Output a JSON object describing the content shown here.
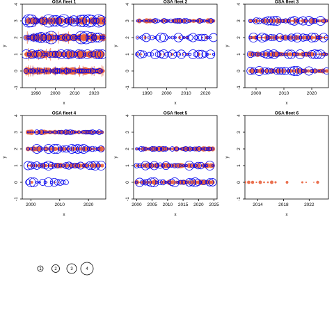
{
  "colors": {
    "observed": "#0000ee",
    "predicted": "#e8603c",
    "axis": "#000000"
  },
  "legend": {
    "labels": [
      "1",
      "2",
      "3",
      "4"
    ]
  },
  "chart_data": [
    {
      "type": "scatter",
      "title": "OSA fleet 1",
      "xlabel": "x",
      "ylabel": "y",
      "xlim": [
        1983,
        2026
      ],
      "ylim": [
        -1,
        4
      ],
      "xticks": [
        1990,
        2000,
        2010,
        2020
      ],
      "yticks": [
        -1,
        0,
        1,
        2,
        3,
        4
      ],
      "rows": [
        {
          "y": 0,
          "years": [
            1985,
            2025
          ],
          "observed": "small",
          "predicted": "dense"
        },
        {
          "y": 1,
          "years": [
            1985,
            2025
          ],
          "observed": "medium",
          "predicted": "dense"
        },
        {
          "y": 2,
          "years": [
            1985,
            2025
          ],
          "observed": "large",
          "predicted": "dense"
        },
        {
          "y": 3,
          "years": [
            1985,
            2025
          ],
          "observed": "large",
          "predicted": "dense"
        }
      ]
    },
    {
      "type": "scatter",
      "title": "OSA fleet 2",
      "xlabel": "x",
      "ylabel": "y",
      "xlim": [
        1983,
        2026
      ],
      "ylim": [
        -1,
        4
      ],
      "xticks": [
        1990,
        2000,
        2010,
        2020
      ],
      "yticks": [
        -1,
        0,
        1,
        2,
        3,
        4
      ],
      "rows": [
        {
          "y": 1,
          "years": [
            1985,
            2025
          ],
          "observed": "medium",
          "predicted": "sparse"
        },
        {
          "y": 2,
          "years": [
            1985,
            2025
          ],
          "observed": "medium",
          "predicted": "sparse"
        },
        {
          "y": 3,
          "years": [
            1985,
            2025
          ],
          "observed": "small",
          "predicted": "medium"
        }
      ]
    },
    {
      "type": "scatter",
      "title": "OSA fleet 3",
      "xlabel": "x",
      "ylabel": "y",
      "xlim": [
        1996,
        2026
      ],
      "ylim": [
        -1,
        4
      ],
      "xticks": [
        2000,
        2010,
        2020
      ],
      "yticks": [
        -1,
        0,
        1,
        2,
        3,
        4
      ],
      "rows": [
        {
          "y": 0,
          "years": [
            1998,
            2026
          ],
          "observed": "medium",
          "predicted": "medium"
        },
        {
          "y": 1,
          "years": [
            1998,
            2026
          ],
          "observed": "medium",
          "predicted": "medium"
        },
        {
          "y": 2,
          "years": [
            1998,
            2026
          ],
          "observed": "medium",
          "predicted": "medium"
        },
        {
          "y": 3,
          "years": [
            1998,
            2026
          ],
          "observed": "medium",
          "predicted": "medium"
        }
      ]
    },
    {
      "type": "scatter",
      "title": "OSA fleet 4",
      "xlabel": "x",
      "ylabel": "y",
      "xlim": [
        1997,
        2026
      ],
      "ylim": [
        -1,
        4
      ],
      "xticks": [
        2000,
        2010,
        2020
      ],
      "yticks": [
        -1,
        0,
        1,
        2,
        3,
        4
      ],
      "rows": [
        {
          "y": 0,
          "years": [
            1999,
            2013
          ],
          "observed": "medium",
          "predicted": "sparse"
        },
        {
          "y": 1,
          "years": [
            1999,
            2025
          ],
          "observed": "medium",
          "predicted": "medium"
        },
        {
          "y": 2,
          "years": [
            1999,
            2025
          ],
          "observed": "medium",
          "predicted": "medium"
        },
        {
          "y": 3,
          "years": [
            1999,
            2025
          ],
          "observed": "small",
          "predicted": "medium"
        }
      ]
    },
    {
      "type": "scatter",
      "title": "OSA fleet 5",
      "xlabel": "x",
      "ylabel": "y",
      "xlim": [
        1999,
        2026
      ],
      "ylim": [
        -1,
        4
      ],
      "xticks": [
        2000,
        2005,
        2010,
        2015,
        2020,
        2025
      ],
      "yticks": [
        -1,
        0,
        1,
        2,
        3,
        4
      ],
      "rows": [
        {
          "y": 0,
          "years": [
            2000,
            2025
          ],
          "observed": "medium",
          "predicted": "medium"
        },
        {
          "y": 1,
          "years": [
            2000,
            2025
          ],
          "observed": "medium",
          "predicted": "medium"
        },
        {
          "y": 2,
          "years": [
            2000,
            2025
          ],
          "observed": "small",
          "predicted": "medium"
        }
      ]
    },
    {
      "type": "scatter",
      "title": "OSA fleet 6",
      "xlabel": "x",
      "ylabel": "y",
      "xlim": [
        2012,
        2025
      ],
      "ylim": [
        -1,
        4
      ],
      "xticks": [
        2014,
        2018,
        2022
      ],
      "yticks": [
        -1,
        0,
        1,
        2,
        3,
        4
      ],
      "rows": [
        {
          "y": 0,
          "years": [
            2012,
            2024
          ],
          "observed": "sparse",
          "predicted": "sparse"
        }
      ]
    }
  ]
}
